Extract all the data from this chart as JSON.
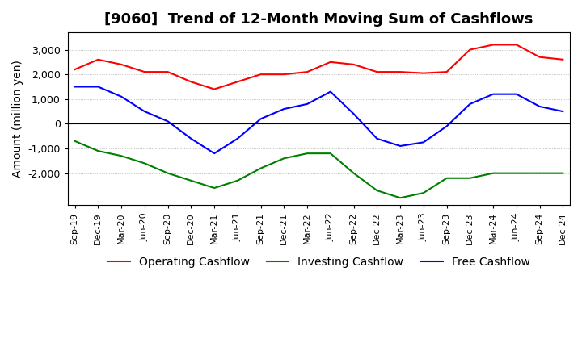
{
  "title": "[9060]  Trend of 12-Month Moving Sum of Cashflows",
  "ylabel": "Amount (million yen)",
  "x_labels": [
    "Sep-19",
    "Dec-19",
    "Mar-20",
    "Jun-20",
    "Sep-20",
    "Dec-20",
    "Mar-21",
    "Jun-21",
    "Sep-21",
    "Dec-21",
    "Mar-22",
    "Jun-22",
    "Sep-22",
    "Dec-22",
    "Mar-23",
    "Jun-23",
    "Sep-23",
    "Dec-23",
    "Mar-24",
    "Jun-24",
    "Sep-24",
    "Dec-24"
  ],
  "operating": [
    2200,
    2600,
    2400,
    2100,
    2100,
    1700,
    1400,
    1700,
    2000,
    2000,
    2100,
    2500,
    2400,
    2100,
    2100,
    2050,
    2100,
    3000,
    3200,
    3200,
    2700,
    2600
  ],
  "investing": [
    -700,
    -1100,
    -1300,
    -1600,
    -2000,
    -2300,
    -2600,
    -2300,
    -1800,
    -1400,
    -1200,
    -1200,
    -2000,
    -2700,
    -3000,
    -2800,
    -2200,
    -2200,
    -2000,
    -2000,
    -2000,
    -2000
  ],
  "free": [
    1500,
    1500,
    1100,
    500,
    100,
    -600,
    -1200,
    -600,
    200,
    600,
    800,
    1300,
    400,
    -600,
    -900,
    -750,
    -100,
    800,
    1200,
    1200,
    700,
    500
  ],
  "operating_color": "#ff0000",
  "investing_color": "#008000",
  "free_color": "#0000ff",
  "ylim_min": -3300,
  "ylim_max": 3700,
  "yticks": [
    -2000,
    -1000,
    0,
    1000,
    2000,
    3000
  ],
  "title_fontsize": 13,
  "axis_fontsize": 10,
  "legend_fontsize": 10,
  "background_color": "#ffffff"
}
